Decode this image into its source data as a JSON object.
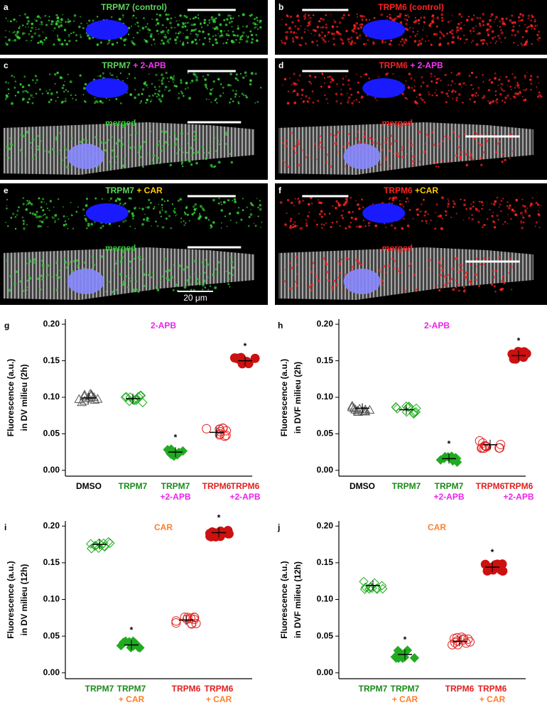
{
  "images": [
    {
      "letter": "a",
      "title": [
        "TRPM7 (control)"
      ],
      "title_colors": [
        "#5cd65c"
      ],
      "color": "#33cc33"
    },
    {
      "letter": "b",
      "title": [
        "TRPM6 (control)"
      ],
      "title_colors": [
        "#ff2020"
      ],
      "color": "#ff2020"
    },
    {
      "letter": "c",
      "title": [
        "TRPM7",
        "+ 2-APB"
      ],
      "title_colors": [
        "#5cd65c",
        "#ff33ff"
      ],
      "color": "#33cc33",
      "merged": "merged"
    },
    {
      "letter": "d",
      "title": [
        "TRPM6",
        "+ 2-APB"
      ],
      "title_colors": [
        "#ff2020",
        "#ff33ff"
      ],
      "color": "#ff2020",
      "merged": "merged"
    },
    {
      "letter": "e",
      "title": [
        "TRPM7",
        "+ CAR"
      ],
      "title_colors": [
        "#5cd65c",
        "#ffcc00"
      ],
      "color": "#33cc33",
      "merged": "merged",
      "scale": "20 μm"
    },
    {
      "letter": "f",
      "title": [
        "TRPM6",
        "+CAR"
      ],
      "title_colors": [
        "#ff2020",
        "#ffcc00"
      ],
      "color": "#ff2020",
      "merged": "merged"
    }
  ],
  "chart_data": [
    {
      "type": "scatter",
      "panel": "g",
      "title": "2-APB",
      "title_color": "#ee22ee",
      "ylabel": [
        "Fluorescence (a.u.)",
        "in DV milieu (2h)"
      ],
      "categories": [
        "DMSO",
        "TRPM7",
        "TRPM7",
        "TRPM6",
        "TRPM6"
      ],
      "sublabels": [
        null,
        null,
        "+2-APB",
        null,
        "+2-APB"
      ],
      "category_colors": [
        "#000000",
        "#1a8a1a",
        "#1a8a1a",
        "#e02020",
        "#e02020"
      ],
      "sublabel_color": "#ee22ee",
      "values": [
        0.099,
        0.098,
        0.025,
        0.052,
        0.15
      ],
      "colors": [
        "#555555",
        "#22aa22",
        "#22aa22",
        "#e02020",
        "#cc1111"
      ],
      "markers": [
        "triangle",
        "diamond",
        "diamond",
        "circle",
        "circle"
      ],
      "filled": [
        false,
        false,
        true,
        false,
        true
      ],
      "significance": [
        null,
        null,
        "*",
        null,
        "*"
      ],
      "ylim": [
        -0.008,
        0.207
      ],
      "yticks": [
        {
          "value": 0,
          "label": "0.00"
        },
        0.05,
        {
          "value": 0.1,
          "label": "0.10"
        },
        0.15,
        {
          "value": 0.2,
          "label": "0.20"
        }
      ]
    },
    {
      "type": "scatter",
      "panel": "h",
      "title": "2-APB",
      "title_color": "#ee22ee",
      "ylabel": [
        "Fluorescence (a.u.)",
        "in DVF milieu (2h)"
      ],
      "categories": [
        "DMSO",
        "TRPM7",
        "TRPM7",
        "TRPM6",
        "TRPM6"
      ],
      "sublabels": [
        null,
        null,
        "+2-APB",
        null,
        "+2-APB"
      ],
      "category_colors": [
        "#000000",
        "#1a8a1a",
        "#1a8a1a",
        "#e02020",
        "#e02020"
      ],
      "sublabel_color": "#ee22ee",
      "values": [
        0.085,
        0.083,
        0.016,
        0.035,
        0.157
      ],
      "colors": [
        "#555555",
        "#22aa22",
        "#22aa22",
        "#e02020",
        "#cc1111"
      ],
      "markers": [
        "triangle",
        "diamond",
        "diamond",
        "circle",
        "circle"
      ],
      "filled": [
        false,
        false,
        true,
        false,
        true
      ],
      "significance": [
        null,
        null,
        "*",
        null,
        "*"
      ],
      "ylim": [
        -0.008,
        0.207
      ],
      "yticks": [
        {
          "value": 0,
          "label": "0.00"
        },
        0.05,
        {
          "value": 0.1,
          "label": "0.10"
        },
        0.15,
        {
          "value": 0.2,
          "label": "0.20"
        }
      ]
    },
    {
      "type": "scatter",
      "panel": "i",
      "title": "CAR",
      "title_color": "#ff7f27",
      "ylabel": [
        "Fluorescence (a.u.)",
        "in DV milieu (12h)"
      ],
      "categories": [
        "TRPM7",
        "TRPM7",
        "TRPM6",
        "TRPM6"
      ],
      "sublabels": [
        null,
        "+ CAR",
        null,
        "+ CAR"
      ],
      "category_colors": [
        "#1a8a1a",
        "#1a8a1a",
        "#e02020",
        "#e02020"
      ],
      "sublabel_color": "#ff7f27",
      "values": [
        0.175,
        0.038,
        0.072,
        0.191
      ],
      "colors": [
        "#22aa22",
        "#22aa22",
        "#e02020",
        "#cc1111"
      ],
      "markers": [
        "diamond",
        "diamond",
        "circle",
        "circle"
      ],
      "filled": [
        false,
        true,
        false,
        true
      ],
      "significance": [
        null,
        "*",
        null,
        "*"
      ],
      "ylim": [
        -0.008,
        0.207
      ],
      "yticks": [
        {
          "value": 0,
          "label": "0.00"
        },
        0.05,
        {
          "value": 0.1,
          "label": "0.10"
        },
        0.15,
        {
          "value": 0.2,
          "label": "0.20"
        }
      ]
    },
    {
      "type": "scatter",
      "panel": "j",
      "title": "CAR",
      "title_color": "#ff7f27",
      "ylabel": [
        "Fluorescence (a.u.)",
        "in DVF milieu (12h)"
      ],
      "categories": [
        "TRPM7",
        "TRPM7",
        "TRPM6",
        "TRPM6"
      ],
      "sublabels": [
        null,
        "+ CAR",
        null,
        "+ CAR"
      ],
      "category_colors": [
        "#1a8a1a",
        "#1a8a1a",
        "#e02020",
        "#e02020"
      ],
      "sublabel_color": "#ff7f27",
      "values": [
        0.119,
        0.025,
        0.043,
        0.144
      ],
      "colors": [
        "#22aa22",
        "#22aa22",
        "#e02020",
        "#cc1111"
      ],
      "markers": [
        "diamond",
        "diamond",
        "circle",
        "circle"
      ],
      "filled": [
        false,
        true,
        false,
        true
      ],
      "significance": [
        null,
        "*",
        null,
        "*"
      ],
      "ylim": [
        -0.008,
        0.207
      ],
      "yticks": [
        {
          "value": 0,
          "label": "0.00"
        },
        0.05,
        {
          "value": 0.1,
          "label": "0.10"
        },
        0.15,
        {
          "value": 0.2,
          "label": "0.20"
        }
      ]
    }
  ]
}
